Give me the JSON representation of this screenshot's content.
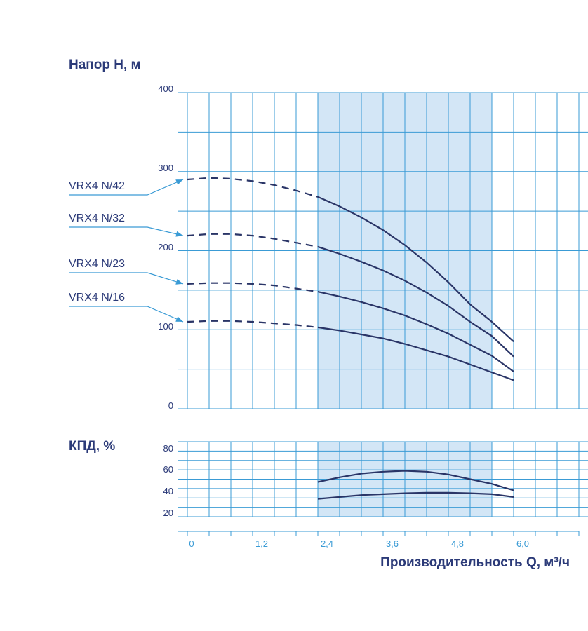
{
  "colors": {
    "grid": "#3a9bd5",
    "band": "#d3e6f6",
    "curve": "#2a3567",
    "text": "#2b3a78",
    "xtick": "#3a9bd5"
  },
  "head_chart": {
    "ylabel": "Напор H, м",
    "ytick_labels": [
      "400",
      "300",
      "200",
      "100",
      "0"
    ]
  },
  "eff_chart": {
    "ylabel": "КПД, %",
    "ytick_labels": [
      "80",
      "60",
      "40",
      "20"
    ]
  },
  "x_axis": {
    "tick_labels": [
      "0",
      "1,2",
      "2,4",
      "3,6",
      "4,8",
      "6,0"
    ],
    "xlabel": "Производительность Q, м³/ч"
  },
  "models": [
    "VRX4 N/42",
    "VRX4 N/32",
    "VRX4 N/23",
    "VRX4 N/16"
  ],
  "chart_data": [
    {
      "type": "line",
      "ylabel": "Напор H, м",
      "xlabel": "Производительность Q, м³/ч",
      "xlim": [
        0,
        7.2
      ],
      "ylim": [
        0,
        400
      ],
      "grid": true,
      "recommended_range": [
        2.4,
        5.6
      ],
      "series": [
        {
          "name": "VRX4 N/42",
          "x": [
            0,
            0.4,
            0.8,
            1.2,
            1.6,
            2.0,
            2.4,
            2.8,
            3.2,
            3.6,
            4.0,
            4.4,
            4.8,
            5.2,
            5.6,
            6.0
          ],
          "y": [
            290,
            292,
            291,
            288,
            283,
            276,
            268,
            256,
            242,
            226,
            207,
            185,
            160,
            132,
            110,
            85
          ]
        },
        {
          "name": "VRX4 N/32",
          "x": [
            0,
            0.4,
            0.8,
            1.2,
            1.6,
            2.0,
            2.4,
            2.8,
            3.2,
            3.6,
            4.0,
            4.4,
            4.8,
            5.2,
            5.6,
            6.0
          ],
          "y": [
            219,
            221,
            221,
            219,
            215,
            210,
            205,
            196,
            186,
            175,
            162,
            147,
            130,
            110,
            92,
            66
          ]
        },
        {
          "name": "VRX4 N/23",
          "x": [
            0,
            0.4,
            0.8,
            1.2,
            1.6,
            2.0,
            2.4,
            2.8,
            3.2,
            3.6,
            4.0,
            4.4,
            4.8,
            5.2,
            5.6,
            6.0
          ],
          "y": [
            158,
            159,
            159,
            158,
            156,
            152,
            148,
            142,
            135,
            127,
            118,
            107,
            95,
            81,
            67,
            47
          ]
        },
        {
          "name": "VRX4 N/16",
          "x": [
            0,
            0.4,
            0.8,
            1.2,
            1.6,
            2.0,
            2.4,
            2.8,
            3.2,
            3.6,
            4.0,
            4.4,
            4.8,
            5.2,
            5.6,
            6.0
          ],
          "y": [
            110,
            111,
            111,
            110,
            108,
            106,
            103,
            99,
            94,
            89,
            82,
            74,
            66,
            56,
            46,
            36
          ]
        }
      ]
    },
    {
      "type": "line",
      "ylabel": "КПД, %",
      "xlabel": "Производительность Q, м³/ч",
      "xlim": [
        0,
        7.2
      ],
      "ylim": [
        10,
        90
      ],
      "grid": true,
      "recommended_range": [
        2.4,
        5.6
      ],
      "series": [
        {
          "x": [
            2.4,
            2.8,
            3.2,
            3.6,
            4.0,
            4.4,
            4.8,
            5.2,
            5.6,
            6.0
          ],
          "y": [
            47,
            52,
            56,
            58,
            59,
            58,
            55,
            50,
            45,
            38
          ]
        },
        {
          "x": [
            2.4,
            2.8,
            3.2,
            3.6,
            4.0,
            4.4,
            4.8,
            5.2,
            5.6,
            6.0
          ],
          "y": [
            29,
            31,
            33,
            34,
            35,
            35.5,
            35.5,
            35,
            34,
            31
          ]
        }
      ]
    }
  ]
}
